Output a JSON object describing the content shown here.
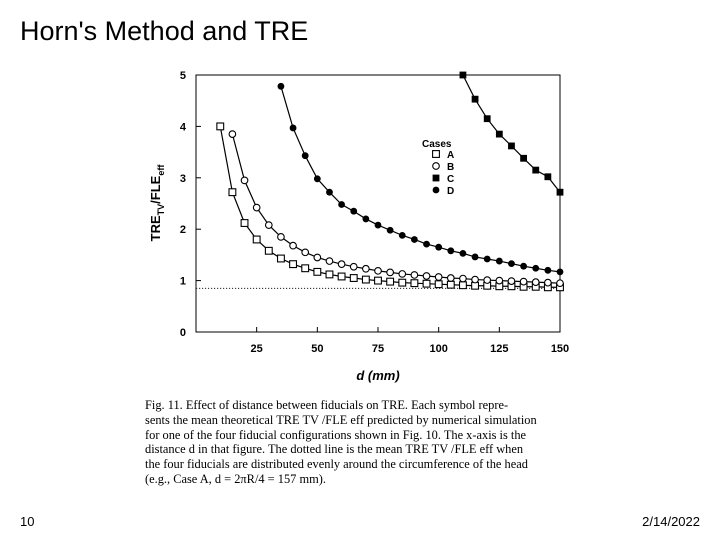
{
  "slide": {
    "title": "Horn's Method and TRE",
    "number": "10",
    "date": "2/14/2022"
  },
  "caption": {
    "lines": [
      "Fig. 11.   Effect of distance between fiducials on TRE. Each symbol repre-",
      "sents the mean theoretical TRE TV /FLE eff predicted by numerical simulation",
      "for one of the four fiducial configurations shown in Fig. 10. The x-axis is the",
      "distance d in that figure. The dotted line is the mean TRE TV /FLE eff when",
      "the four fiducials are distributed evenly around the circumference of the head",
      "(e.g., Case A, d = 2πR/4 = 157 mm)."
    ]
  },
  "chart_data": {
    "type": "line",
    "xlabel": "d (mm)",
    "ylabel": "TRE",
    "ylabel_sub": "TV",
    "ylabel_mid": "/FLE",
    "ylabel_sub2": "eff",
    "xlim": [
      0,
      150
    ],
    "ylim": [
      0,
      5
    ],
    "xticks": [
      25,
      50,
      75,
      100,
      125,
      150
    ],
    "yticks": [
      0,
      1,
      2,
      3,
      4,
      5
    ],
    "grid": false,
    "legend": {
      "title": "Cases",
      "position": "top-right"
    },
    "reference_line": {
      "y": 0.85,
      "style": "dotted"
    },
    "series": [
      {
        "name": "A",
        "marker": "open-square",
        "x": [
          10,
          15,
          20,
          25,
          30,
          35,
          40,
          45,
          50,
          55,
          60,
          65,
          70,
          75,
          80,
          85,
          90,
          95,
          100,
          105,
          110,
          115,
          120,
          125,
          130,
          135,
          140,
          145,
          150
        ],
        "y": [
          4.0,
          2.72,
          2.12,
          1.8,
          1.58,
          1.43,
          1.32,
          1.24,
          1.17,
          1.12,
          1.08,
          1.05,
          1.02,
          1.0,
          0.98,
          0.96,
          0.95,
          0.94,
          0.93,
          0.92,
          0.91,
          0.9,
          0.9,
          0.89,
          0.89,
          0.88,
          0.88,
          0.87,
          0.87
        ]
      },
      {
        "name": "B",
        "marker": "open-circle",
        "x": [
          15,
          20,
          25,
          30,
          35,
          40,
          45,
          50,
          55,
          60,
          65,
          70,
          75,
          80,
          85,
          90,
          95,
          100,
          105,
          110,
          115,
          120,
          125,
          130,
          135,
          140,
          145,
          150
        ],
        "y": [
          3.85,
          2.95,
          2.42,
          2.08,
          1.85,
          1.68,
          1.55,
          1.45,
          1.38,
          1.32,
          1.27,
          1.23,
          1.19,
          1.16,
          1.13,
          1.11,
          1.09,
          1.07,
          1.05,
          1.04,
          1.02,
          1.01,
          1.0,
          0.99,
          0.98,
          0.97,
          0.96,
          0.95
        ]
      },
      {
        "name": "C",
        "marker": "filled-square",
        "x": [
          110,
          115,
          120,
          125,
          130,
          135,
          140,
          145,
          150
        ],
        "y": [
          5.0,
          4.53,
          4.15,
          3.85,
          3.62,
          3.38,
          3.15,
          3.02,
          2.72
        ]
      },
      {
        "name": "D",
        "marker": "filled-circle",
        "x": [
          35,
          40,
          45,
          50,
          55,
          60,
          65,
          70,
          75,
          80,
          85,
          90,
          95,
          100,
          105,
          110,
          115,
          120,
          125,
          130,
          135,
          140,
          145,
          150
        ],
        "y": [
          4.78,
          3.97,
          3.43,
          2.98,
          2.72,
          2.48,
          2.35,
          2.2,
          2.08,
          1.98,
          1.88,
          1.8,
          1.71,
          1.65,
          1.58,
          1.53,
          1.46,
          1.42,
          1.38,
          1.33,
          1.28,
          1.24,
          1.2,
          1.17
        ]
      }
    ]
  }
}
